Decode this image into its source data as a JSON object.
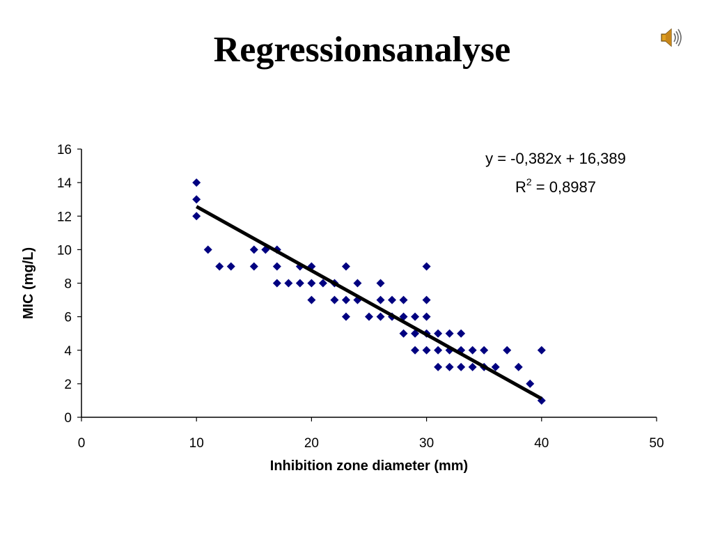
{
  "slide": {
    "title": "Regressionsanalyse",
    "audio_icon": "speaker-volume-icon"
  },
  "chart_data": {
    "type": "scatter",
    "xlabel": "Inhibition zone diameter (mm)",
    "ylabel": "MIC (mg/L)",
    "xlim": [
      0,
      50
    ],
    "ylim": [
      0,
      16
    ],
    "xticks": [
      0,
      10,
      20,
      30,
      40,
      50
    ],
    "yticks": [
      0,
      2,
      4,
      6,
      8,
      10,
      12,
      14,
      16
    ],
    "grid": false,
    "marker": "diamond",
    "marker_color": "#000080",
    "trendline_color": "#000000",
    "equation": "y = -0,382x + 16,389",
    "r_squared_label": "R",
    "r_squared_exp": "2",
    "r_squared_value": " = 0,8987",
    "trendline": {
      "slope": -0.382,
      "intercept": 16.389,
      "x_range": [
        10,
        40
      ]
    },
    "points": [
      [
        10,
        14
      ],
      [
        10,
        13
      ],
      [
        10,
        12
      ],
      [
        11,
        10
      ],
      [
        12,
        9
      ],
      [
        13,
        9
      ],
      [
        15,
        10
      ],
      [
        15,
        9
      ],
      [
        16,
        10
      ],
      [
        17,
        10
      ],
      [
        17,
        9
      ],
      [
        17,
        8
      ],
      [
        18,
        8
      ],
      [
        19,
        9
      ],
      [
        19,
        8
      ],
      [
        20,
        9
      ],
      [
        20,
        8
      ],
      [
        20,
        7
      ],
      [
        21,
        8
      ],
      [
        22,
        8
      ],
      [
        22,
        7
      ],
      [
        23,
        9
      ],
      [
        23,
        7
      ],
      [
        23,
        6
      ],
      [
        24,
        8
      ],
      [
        24,
        7
      ],
      [
        25,
        6
      ],
      [
        26,
        8
      ],
      [
        26,
        7
      ],
      [
        26,
        6
      ],
      [
        27,
        7
      ],
      [
        27,
        6
      ],
      [
        28,
        7
      ],
      [
        28,
        6
      ],
      [
        28,
        5
      ],
      [
        29,
        6
      ],
      [
        29,
        5
      ],
      [
        29,
        4
      ],
      [
        30,
        9
      ],
      [
        30,
        7
      ],
      [
        30,
        6
      ],
      [
        30,
        5
      ],
      [
        30,
        4
      ],
      [
        31,
        5
      ],
      [
        31,
        4
      ],
      [
        31,
        3
      ],
      [
        32,
        5
      ],
      [
        32,
        4
      ],
      [
        32,
        3
      ],
      [
        33,
        5
      ],
      [
        33,
        4
      ],
      [
        33,
        3
      ],
      [
        34,
        4
      ],
      [
        34,
        3
      ],
      [
        35,
        4
      ],
      [
        35,
        3
      ],
      [
        36,
        3
      ],
      [
        37,
        4
      ],
      [
        38,
        3
      ],
      [
        39,
        2
      ],
      [
        40,
        4
      ],
      [
        40,
        1
      ]
    ]
  }
}
